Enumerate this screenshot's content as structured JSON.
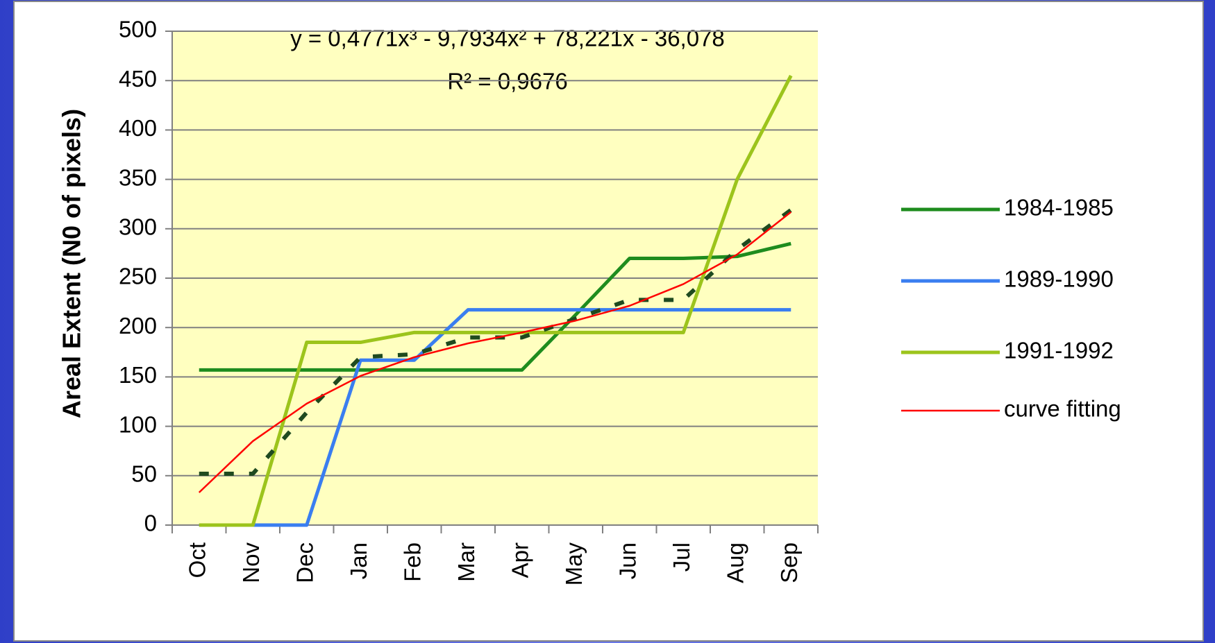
{
  "chart_data": {
    "type": "line",
    "equation": "y = 0,4771x³ - 9,7934x² + 78,221x - 36,078",
    "r_squared": "R² = 0,9676",
    "y_label": "Areal Extent (N0 of pixels)",
    "categories": [
      "Oct",
      "Nov",
      "Dec",
      "Jan",
      "Feb",
      "Mar",
      "Apr",
      "May",
      "Jun",
      "Jul",
      "Aug",
      "Sep"
    ],
    "series": [
      {
        "name": "1984-1985",
        "color": "#1e8c1e",
        "values": [
          157,
          157,
          157,
          157,
          157,
          157,
          157,
          213,
          270,
          270,
          272,
          285
        ]
      },
      {
        "name": "1989-1990",
        "color": "#3a7ef0",
        "values": [
          0,
          0,
          0,
          167,
          167,
          218,
          218,
          218,
          218,
          218,
          218,
          218
        ]
      },
      {
        "name": "1991-1992",
        "color": "#9cc41c",
        "values": [
          0,
          0,
          185,
          185,
          195,
          195,
          195,
          195,
          195,
          195,
          350,
          455
        ]
      },
      {
        "color": "#1f4a1f",
        "dashed": true,
        "values": [
          52,
          52,
          114,
          170,
          173,
          190,
          190,
          209,
          228,
          228,
          279,
          319
        ]
      },
      {
        "name": "curve fitting",
        "color": "#ff0000",
        "values": [
          33,
          85,
          123,
          151,
          170,
          184,
          195,
          207,
          222,
          244,
          274,
          317
        ]
      }
    ],
    "ylim": [
      0,
      500
    ],
    "yticks": [
      0,
      50,
      100,
      150,
      200,
      250,
      300,
      350,
      400,
      450,
      500
    ],
    "grid": true,
    "legend": "right",
    "plot_background": "#ffffc0"
  }
}
